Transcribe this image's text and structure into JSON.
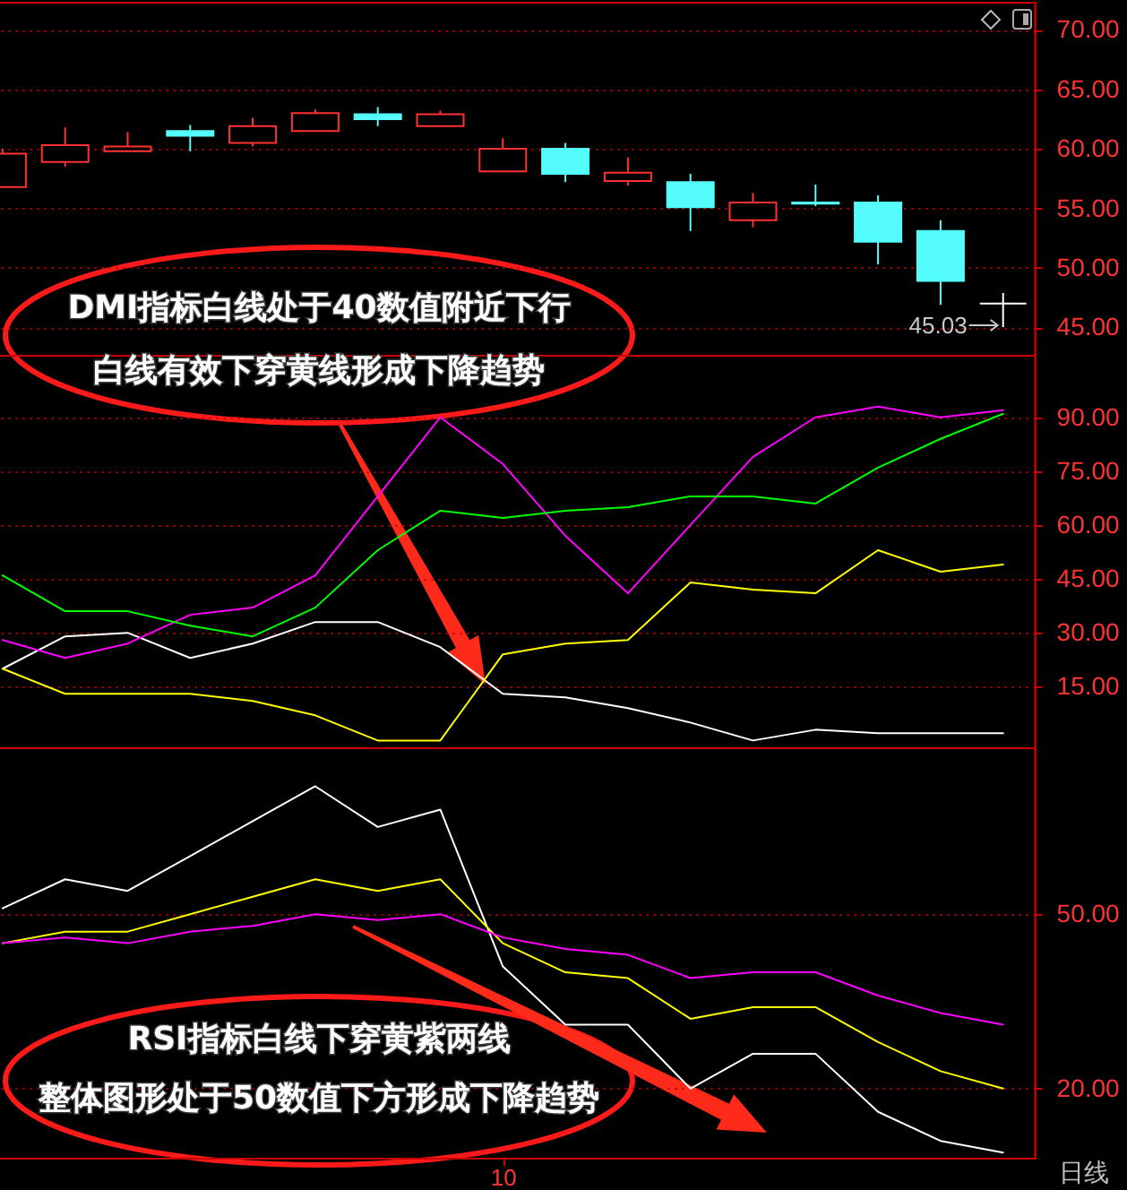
{
  "chart_data": [
    {
      "type": "candlestick",
      "categories": [
        null,
        null,
        null,
        null,
        null,
        null,
        null,
        null,
        null,
        null,
        null,
        null,
        null,
        null,
        null,
        null,
        null
      ],
      "ohlc": [
        [
          56.8,
          60.0,
          56.8,
          59.6
        ],
        [
          58.9,
          61.8,
          58.5,
          60.3
        ],
        [
          59.8,
          61.4,
          59.8,
          60.2
        ],
        [
          61.5,
          62.0,
          59.8,
          61.1
        ],
        [
          60.5,
          62.6,
          60.2,
          61.9
        ],
        [
          61.5,
          63.3,
          61.5,
          63.0
        ],
        [
          62.9,
          63.5,
          61.9,
          62.5
        ],
        [
          61.9,
          63.2,
          61.9,
          62.9
        ],
        [
          58.1,
          60.9,
          58.1,
          60.0
        ],
        [
          60.0,
          60.5,
          57.2,
          57.9
        ],
        [
          57.3,
          59.3,
          56.9,
          58.0
        ],
        [
          57.2,
          57.9,
          53.1,
          55.1
        ],
        [
          54.0,
          56.3,
          53.4,
          55.5
        ],
        [
          55.5,
          57.0,
          55.2,
          55.4
        ],
        [
          55.5,
          56.1,
          50.3,
          52.2
        ],
        [
          53.1,
          54.0,
          46.9,
          48.9
        ],
        [
          47.0,
          47.9,
          45.03,
          47.0
        ]
      ],
      "colors": [
        "#ff3232",
        "#ff3232",
        "#ff3232",
        "#54fcfc",
        "#ff3232",
        "#ff3232",
        "#54fcfc",
        "#ff3232",
        "#ff3232",
        "#54fcfc",
        "#ff3232",
        "#54fcfc",
        "#ff3232",
        "#54fcfc",
        "#54fcfc",
        "#54fcfc",
        "#ffffff"
      ],
      "ylim": [
        42.7,
        72.35
      ],
      "yticks": [
        {
          "value": 45,
          "label": "45.00"
        },
        {
          "value": 50,
          "label": "50.00"
        },
        {
          "value": 55,
          "label": "55.00"
        },
        {
          "value": 60,
          "label": "60.00"
        },
        {
          "value": 65,
          "label": "65.00"
        },
        {
          "value": 70,
          "label": "70.00"
        }
      ],
      "grid": "y",
      "tick_labels": "y",
      "annotations": [
        "45.03"
      ]
    },
    {
      "type": "line",
      "categories": [
        null,
        null,
        null,
        null,
        null,
        null,
        null,
        null,
        null,
        null,
        null,
        null,
        null,
        null,
        null,
        null,
        null
      ],
      "series": [
        {
          "color": "#ffffff",
          "values": [
            20,
            29,
            30,
            23,
            27,
            33,
            33,
            26,
            13,
            12,
            9,
            5,
            0,
            3,
            2,
            2,
            2
          ]
        },
        {
          "color": "#ffff00",
          "values": [
            20,
            13,
            13,
            13,
            11,
            7,
            0,
            0,
            24,
            27,
            28,
            44,
            42,
            41,
            53,
            47,
            49
          ]
        },
        {
          "color": "#ff00ff",
          "values": [
            28,
            23,
            27,
            35,
            37,
            46,
            68,
            90,
            77,
            57,
            41,
            60,
            79,
            90,
            93,
            90,
            92
          ]
        },
        {
          "color": "#00ff00",
          "values": [
            46,
            36,
            36,
            32,
            29,
            37,
            53,
            64,
            62,
            64,
            65,
            68,
            68,
            66,
            76,
            84,
            91
          ]
        }
      ],
      "ylim": [
        -1.9,
        107.4
      ],
      "yticks": [
        {
          "value": 15,
          "label": "15.00"
        },
        {
          "value": 30,
          "label": "30.00"
        },
        {
          "value": 45,
          "label": "45.00"
        },
        {
          "value": 60,
          "label": "60.00"
        },
        {
          "value": 75,
          "label": "75.00"
        },
        {
          "value": 90,
          "label": "90.00"
        }
      ],
      "grid": "y",
      "tick_labels": "y",
      "annotations": [
        "DMI指标白线处于40数值附近下行",
        "白线有效下穿黄线形成下降趋势"
      ]
    },
    {
      "type": "line",
      "categories": [
        null,
        null,
        null,
        null,
        null,
        null,
        null,
        null,
        "10",
        null,
        null,
        null,
        null,
        null,
        null,
        null,
        null
      ],
      "series": [
        {
          "color": "#ffffff",
          "values": [
            51,
            56,
            54,
            60,
            66,
            72,
            65,
            68,
            41,
            31,
            31,
            20,
            26,
            26,
            16,
            11,
            9
          ]
        },
        {
          "color": "#ffff00",
          "values": [
            45,
            47,
            47,
            50,
            53,
            56,
            54,
            56,
            45,
            40,
            39,
            32,
            34,
            34,
            28,
            23,
            20
          ]
        },
        {
          "color": "#ff00ff",
          "values": [
            45,
            46,
            45,
            47,
            48,
            50,
            49,
            50,
            46,
            44,
            43,
            39,
            40,
            40,
            36,
            33,
            31
          ]
        }
      ],
      "ylim": [
        8.1,
        78.7
      ],
      "yticks": [
        {
          "value": 20,
          "label": "20.00"
        },
        {
          "value": 50,
          "label": "50.00"
        }
      ],
      "grid": "y",
      "annotations": [
        "RSI指标白线下穿黄紫两线",
        "整体图形处于50数值下方形成下降趋势",
        "日线"
      ]
    }
  ]
}
